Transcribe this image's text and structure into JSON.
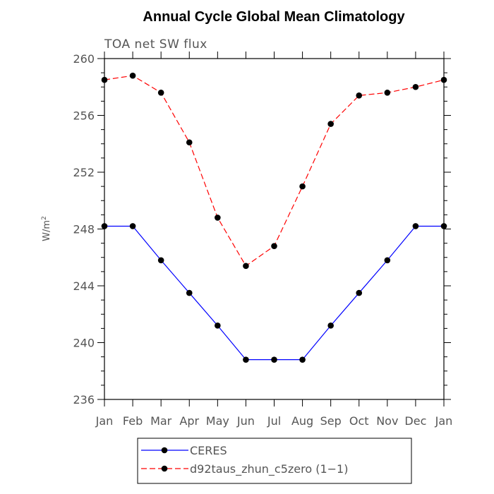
{
  "chart_data": {
    "type": "line",
    "title": "Annual Cycle Global Mean Climatology",
    "subtitle": "TOA net SW flux",
    "ylabel": "W/m",
    "ylabel_sup": "2",
    "categories": [
      "Jan",
      "Feb",
      "Mar",
      "Apr",
      "May",
      "Jun",
      "Jul",
      "Aug",
      "Sep",
      "Oct",
      "Nov",
      "Dec",
      "Jan"
    ],
    "ylim": [
      236,
      260
    ],
    "yticks": [
      236,
      240,
      244,
      248,
      252,
      256,
      260
    ],
    "legend_position": "bottom-center",
    "series": [
      {
        "name": "CERES",
        "color": "#0000ff",
        "dash": "solid",
        "values": [
          248.2,
          248.2,
          245.8,
          243.5,
          241.2,
          238.8,
          238.8,
          238.8,
          241.2,
          243.5,
          245.8,
          248.2,
          248.2
        ]
      },
      {
        "name": "d92taus_zhun_c5zero (1−1)",
        "color": "#ff0000",
        "dash": "dashed",
        "values": [
          258.5,
          258.8,
          257.6,
          254.1,
          248.8,
          245.4,
          246.8,
          251.0,
          255.4,
          257.4,
          257.6,
          258.0,
          258.5
        ]
      }
    ]
  }
}
